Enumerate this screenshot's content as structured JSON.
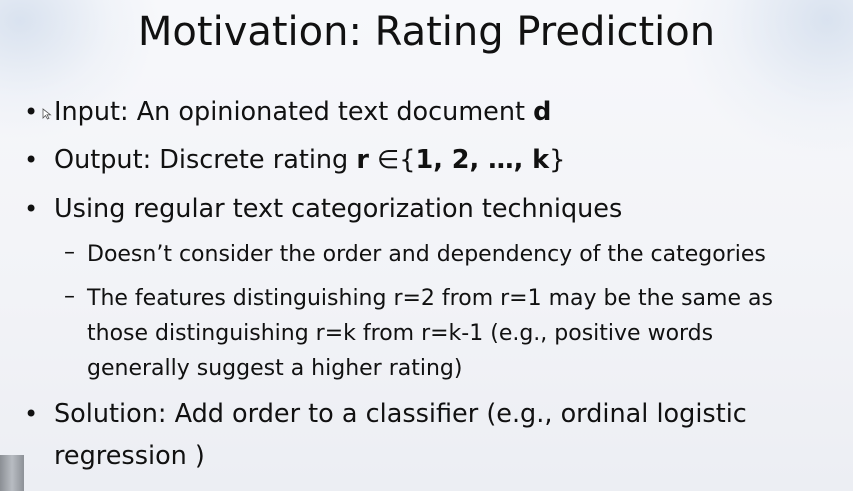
{
  "title": "Motivation: Rating Prediction",
  "bullets": {
    "input": {
      "text": "Input: An opinionated text document ",
      "bold": "d"
    },
    "output": {
      "text": "Output: Discrete rating ",
      "bold_r": "r",
      "symbol": " ∈{",
      "bold_set": "1, 2, …, k",
      "close": "}"
    },
    "using": {
      "text": "Using regular text categorization techniques"
    },
    "sub1": {
      "text": "Doesn’t consider the order and dependency of the categories"
    },
    "sub2": {
      "line1": "The features distinguishing r=2 from r=1 may be the same as",
      "line2": "those distinguishing r=k from r=k-1  (e.g., positive words",
      "line3": "generally suggest a higher rating)"
    },
    "solution": {
      "line1": "Solution: Add order to a classifier (e.g., ordinal logistic",
      "line2": "regression )"
    }
  },
  "markers": {
    "bullet": "•",
    "dash": "–"
  }
}
